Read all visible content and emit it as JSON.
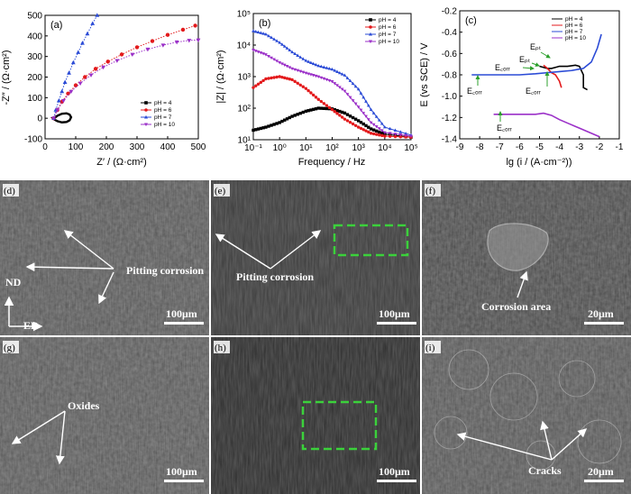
{
  "chart_data": [
    {
      "type": "scatter",
      "panel_label": "(a)",
      "xlabel": "Z′ / (Ω·cm²)",
      "ylabel": "-Z″ / (Ω·cm²)",
      "xlim": [
        0,
        500
      ],
      "ylim": [
        -100,
        500
      ],
      "xticks": [
        0,
        100,
        200,
        300,
        400,
        500
      ],
      "yticks": [
        -100,
        0,
        100,
        200,
        300,
        400,
        500
      ],
      "legend_position": "bottom-right",
      "series": [
        {
          "name": "pH = 4",
          "color": "#000000",
          "marker": "square",
          "x": [
            30,
            40,
            55,
            70,
            80,
            85,
            80,
            70,
            55,
            40,
            30,
            26
          ],
          "y": [
            0,
            12,
            22,
            24,
            18,
            5,
            -10,
            -18,
            -20,
            -14,
            -6,
            0
          ]
        },
        {
          "name": "pH = 6",
          "color": "#e31a1c",
          "marker": "circle",
          "x": [
            28,
            40,
            55,
            75,
            100,
            130,
            165,
            205,
            250,
            300,
            350,
            400,
            450,
            490
          ],
          "y": [
            0,
            40,
            80,
            120,
            160,
            200,
            240,
            275,
            310,
            345,
            375,
            405,
            430,
            450
          ]
        },
        {
          "name": "pH = 7",
          "color": "#2b4bd6",
          "marker": "triangle",
          "x": [
            28,
            35,
            45,
            55,
            65,
            78,
            92,
            108,
            122,
            138,
            155,
            170
          ],
          "y": [
            0,
            40,
            85,
            130,
            175,
            220,
            270,
            320,
            365,
            410,
            460,
            500
          ]
        },
        {
          "name": "pH = 10",
          "color": "#9b30c8",
          "marker": "triangle-down",
          "x": [
            28,
            40,
            60,
            85,
            115,
            150,
            190,
            235,
            285,
            335,
            385,
            430,
            470,
            500
          ],
          "y": [
            0,
            40,
            85,
            130,
            170,
            210,
            248,
            280,
            310,
            335,
            355,
            370,
            378,
            380
          ]
        }
      ]
    },
    {
      "type": "line",
      "panel_label": "(b)",
      "xlabel": "Frequency / Hz",
      "ylabel": "|Z| / (Ω·cm²)",
      "xscale": "log",
      "yscale": "log",
      "xlim": [
        0.1,
        100000
      ],
      "ylim": [
        10,
        100000
      ],
      "xtick_labels": [
        "10⁻¹",
        "10⁰",
        "10¹",
        "10²",
        "10³",
        "10⁴",
        "10⁵"
      ],
      "ytick_labels": [
        "10¹",
        "10²",
        "10³",
        "10⁴",
        "10⁵"
      ],
      "legend_position": "top-right",
      "series": [
        {
          "name": "pH = 4",
          "color": "#000000",
          "marker": "square",
          "x": [
            0.1,
            0.3,
            1,
            3,
            10,
            30,
            100,
            300,
            1000,
            3000,
            10000,
            100000
          ],
          "y": [
            20,
            25,
            35,
            55,
            80,
            100,
            95,
            70,
            40,
            22,
            15,
            12
          ]
        },
        {
          "name": "pH = 6",
          "color": "#e31a1c",
          "marker": "circle",
          "x": [
            0.1,
            0.3,
            1,
            3,
            10,
            30,
            100,
            300,
            1000,
            3000,
            10000,
            100000
          ],
          "y": [
            450,
            850,
            1000,
            800,
            420,
            190,
            90,
            45,
            25,
            16,
            13,
            12
          ]
        },
        {
          "name": "pH = 7",
          "color": "#2b4bd6",
          "marker": "triangle",
          "x": [
            0.1,
            0.3,
            1,
            3,
            10,
            30,
            100,
            300,
            1000,
            3000,
            10000,
            100000
          ],
          "y": [
            28000,
            22000,
            12000,
            6000,
            3200,
            2200,
            1700,
            1100,
            400,
            90,
            25,
            14
          ]
        },
        {
          "name": "pH = 10",
          "color": "#9b30c8",
          "marker": "triangle-down",
          "x": [
            0.1,
            0.3,
            1,
            3,
            10,
            30,
            100,
            300,
            1000,
            3000,
            10000,
            100000
          ],
          "y": [
            7000,
            5000,
            2800,
            1800,
            1300,
            1000,
            700,
            350,
            110,
            35,
            17,
            13
          ]
        }
      ]
    },
    {
      "type": "line",
      "panel_label": "(c)",
      "xlabel": "lg (i / (A·cm⁻²))",
      "ylabel": "E (vs SCE) / V",
      "xlim": [
        -9,
        -1
      ],
      "ylim": [
        -1.4,
        -0.2
      ],
      "xticks": [
        -9,
        -8,
        -7,
        -6,
        -5,
        -4,
        -3,
        -2,
        -1
      ],
      "yticks": [
        -1.4,
        -1.2,
        -1.0,
        -0.8,
        -0.6,
        -0.4,
        -0.2
      ],
      "legend_position": "top-right",
      "annotations": [
        "Eₚₜ",
        "Eₚₜ",
        "E꜀ₒᵣᵣ",
        "E꜀ₒᵣᵣ",
        "E꜀ₒᵣᵣ",
        "E꜀ₒᵣᵣ"
      ],
      "series": [
        {
          "name": "pH = 4",
          "color": "#000000",
          "x": [
            -5.0,
            -4.8,
            -4.6,
            -4.4,
            -4.2,
            -4.0,
            -3.6,
            -3.2,
            -3.0,
            -2.8,
            -2.8,
            -2.6
          ],
          "y": [
            -0.72,
            -0.73,
            -0.74,
            -0.74,
            -0.73,
            -0.72,
            -0.72,
            -0.71,
            -0.72,
            -0.8,
            -0.92,
            -0.94
          ]
        },
        {
          "name": "pH = 6",
          "color": "#e31a1c",
          "x": [
            -4.8,
            -4.6,
            -4.5,
            -4.4,
            -4.2,
            -4.0,
            -3.9
          ],
          "y": [
            -0.71,
            -0.74,
            -0.76,
            -0.78,
            -0.8,
            -0.86,
            -0.92
          ]
        },
        {
          "name": "pH = 7",
          "color": "#2b4bd6",
          "x": [
            -8.4,
            -7.0,
            -6.0,
            -5.2,
            -4.6,
            -4.0,
            -3.4,
            -2.8,
            -2.4,
            -2.1,
            -1.9
          ],
          "y": [
            -0.8,
            -0.8,
            -0.8,
            -0.79,
            -0.78,
            -0.77,
            -0.76,
            -0.74,
            -0.68,
            -0.55,
            -0.42
          ]
        },
        {
          "name": "pH = 10",
          "color": "#9b30c8",
          "x": [
            -7.3,
            -6.5,
            -6.0,
            -5.6,
            -5.2,
            -4.8,
            -4.4,
            -4.0,
            -3.5,
            -3.0,
            -2.5,
            -2.0
          ],
          "y": [
            -1.17,
            -1.17,
            -1.17,
            -1.17,
            -1.17,
            -1.16,
            -1.18,
            -1.22,
            -1.26,
            -1.3,
            -1.34,
            -1.38
          ]
        }
      ]
    }
  ],
  "micrographs": [
    {
      "letter": "(d)",
      "scale_bar": "100μm",
      "labels": [
        "Pitting corrosion"
      ],
      "axes": [
        "ND",
        "ED"
      ]
    },
    {
      "letter": "(e)",
      "scale_bar": "100μm",
      "labels": [
        "Pitting corrosion"
      ]
    },
    {
      "letter": "(f)",
      "scale_bar": "20μm",
      "labels": [
        "Corrosion area"
      ]
    },
    {
      "letter": "(g)",
      "scale_bar": "100μm",
      "labels": [
        "Oxides"
      ]
    },
    {
      "letter": "(h)",
      "scale_bar": "100μm",
      "labels": []
    },
    {
      "letter": "(i)",
      "scale_bar": "20μm",
      "labels": [
        "Cracks"
      ]
    }
  ]
}
